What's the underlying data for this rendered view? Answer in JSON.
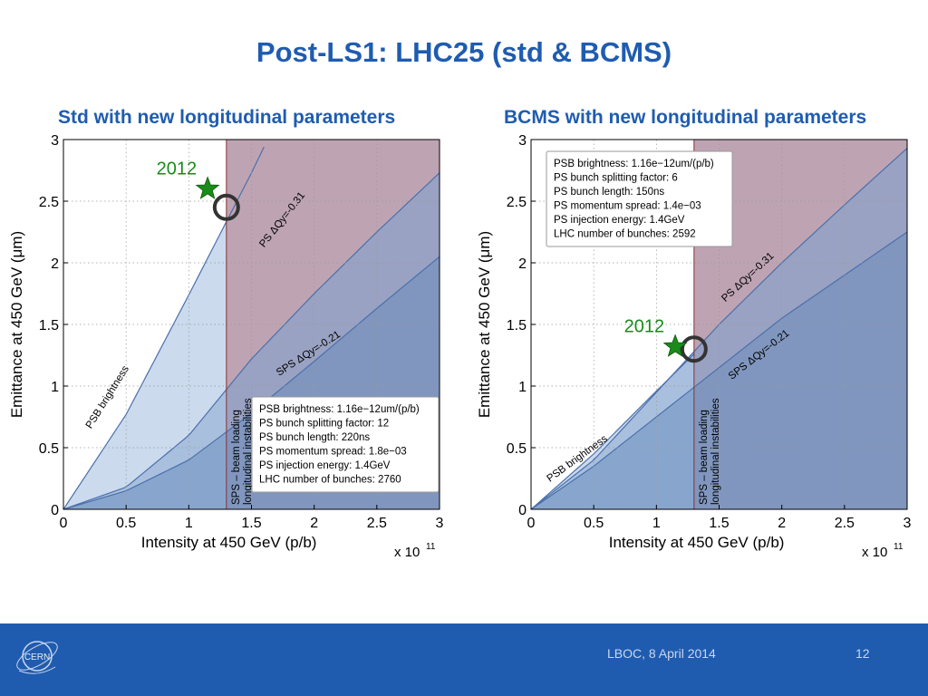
{
  "slide": {
    "title": "Post-LS1: LHC25 (std & BCMS)",
    "footer_date": "LBOC, 8 April 2014",
    "page_number": "12",
    "logo_text": "CERN"
  },
  "colors": {
    "title": "#1f5cb0",
    "panel_title": "#1f5cb0",
    "footer_bg": "#1f5cb0",
    "light_blue": "#c8d8ec",
    "mid_blue": "#9db5d8",
    "dark_blue": "#7fa0c8",
    "red_region": "#e6b0b0",
    "curve": "#4a70ac",
    "annotation_green": "#1a8a1a",
    "star": "#1a8a1a",
    "circle": "#333333"
  },
  "chart_data": [
    {
      "type": "area",
      "title": "Std with new longitudinal parameters",
      "xlabel": "Intensity at 450 GeV (p/b)",
      "ylabel": "Emittance at 450 GeV (μm)",
      "xlim": [
        0,
        3
      ],
      "ylim": [
        0,
        3
      ],
      "x_multiplier": "x 10",
      "x_multiplier_exp": "11",
      "grid": true,
      "x_ticks": [
        "0",
        "0.5",
        "1",
        "1.5",
        "2",
        "2.5",
        "3"
      ],
      "y_ticks": [
        "0",
        "0.5",
        "1",
        "1.5",
        "2",
        "2.5",
        "3"
      ],
      "series": [
        {
          "name": "PSB brightness",
          "x": [
            0,
            0.5,
            1,
            1.5,
            1.6
          ],
          "y": [
            0,
            0.77,
            1.74,
            2.73,
            2.94
          ]
        },
        {
          "name": "PS ΔQy=-0.31",
          "x": [
            0,
            0.5,
            1,
            1.5,
            2,
            2.5,
            3
          ],
          "y": [
            0,
            0.18,
            0.6,
            1.22,
            1.75,
            2.25,
            2.73
          ]
        },
        {
          "name": "SPS ΔQy=-0.21",
          "x": [
            0,
            0.5,
            1,
            1.5,
            2,
            2.5,
            3
          ],
          "y": [
            0,
            0.15,
            0.4,
            0.78,
            1.2,
            1.63,
            2.05
          ]
        }
      ],
      "beam_loading_limit_x": 1.3,
      "vertical_label_line1": "SPS – beam loading",
      "vertical_label_line2": "longitudinal instabilities",
      "curve_labels": [
        "PSB brightness",
        "PS ΔQy=-0.31",
        "SPS ΔQy=-0.21"
      ],
      "marker_2012": {
        "label": "2012",
        "x": 1.15,
        "y": 2.6
      },
      "operating_point": {
        "x": 1.3,
        "y": 2.45
      },
      "info_box": [
        "PSB brightness: 1.16e−12um/(p/b)",
        "PS bunch splitting factor: 12",
        "PS bunch length: 220ns",
        "PS momentum spread: 1.8e−03",
        "PS injection energy: 1.4GeV",
        "LHC number of bunches: 2760"
      ]
    },
    {
      "type": "area",
      "title": "BCMS with new longitudinal parameters",
      "xlabel": "Intensity at 450 GeV (p/b)",
      "ylabel": "Emittance at 450 GeV (μm)",
      "xlim": [
        0,
        3
      ],
      "ylim": [
        0,
        3
      ],
      "x_multiplier": "x 10",
      "x_multiplier_exp": "11",
      "grid": true,
      "x_ticks": [
        "0",
        "0.5",
        "1",
        "1.5",
        "2",
        "2.5",
        "3"
      ],
      "y_ticks": [
        "0",
        "0.5",
        "1",
        "1.5",
        "2",
        "2.5",
        "3"
      ],
      "series": [
        {
          "name": "PSB brightness",
          "x": [
            0,
            0.5,
            1,
            1.3
          ],
          "y": [
            0,
            0.45,
            0.96,
            1.26
          ]
        },
        {
          "name": "PS ΔQy=-0.31",
          "x": [
            0,
            0.5,
            1,
            1.5,
            2,
            2.5,
            3
          ],
          "y": [
            0,
            0.4,
            0.95,
            1.5,
            2.0,
            2.47,
            2.93
          ]
        },
        {
          "name": "SPS ΔQy=-0.21",
          "x": [
            0,
            0.5,
            1,
            1.5,
            2,
            2.5,
            3
          ],
          "y": [
            0,
            0.35,
            0.75,
            1.15,
            1.55,
            1.9,
            2.25
          ]
        }
      ],
      "beam_loading_limit_x": 1.3,
      "vertical_label_line1": "SPS – beam loading",
      "vertical_label_line2": "longitudinal instabilities",
      "curve_labels": [
        "PSB brightness",
        "PS ΔQy=-0.31",
        "SPS ΔQy=-0.21"
      ],
      "marker_2012": {
        "label": "2012",
        "x": 1.15,
        "y": 1.32
      },
      "operating_point": {
        "x": 1.3,
        "y": 1.3
      },
      "info_box": [
        "PSB brightness: 1.16e−12um/(p/b)",
        "PS bunch splitting factor: 6",
        "PS bunch length: 150ns",
        "PS momentum spread: 1.4e−03",
        "PS injection energy: 1.4GeV",
        "LHC number of bunches: 2592"
      ]
    }
  ]
}
